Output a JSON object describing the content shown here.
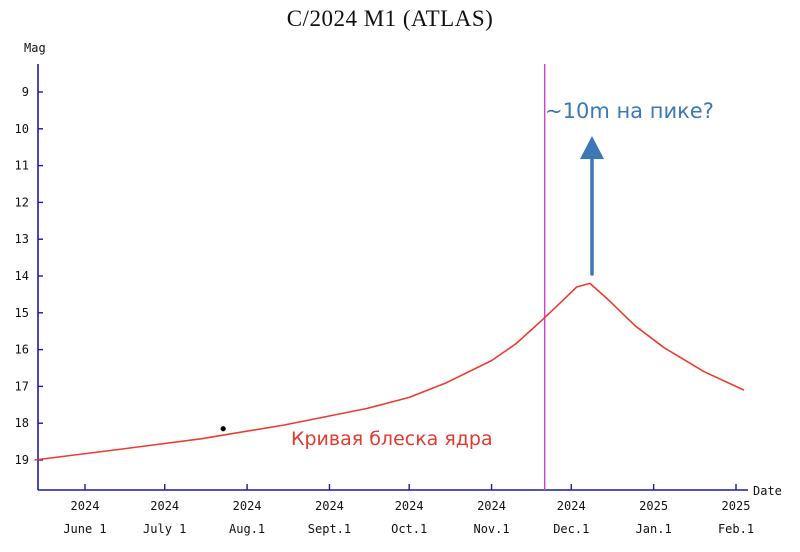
{
  "chart_data": {
    "type": "line",
    "title": "C/2024 M1 (ATLAS)",
    "ylabel": "Mag",
    "xlabel": "Date",
    "y_inverted": true,
    "ylim": [
      19.8,
      8.5
    ],
    "yticks": [
      9,
      10,
      11,
      12,
      13,
      14,
      15,
      16,
      17,
      18,
      19
    ],
    "xlim": [
      "2024-05-13",
      "2025-02-09"
    ],
    "xticks": [
      {
        "date": "2024-06-01",
        "year": "2024",
        "label": "June 1"
      },
      {
        "date": "2024-07-01",
        "year": "2024",
        "label": "July 1"
      },
      {
        "date": "2024-08-01",
        "year": "2024",
        "label": "Aug.1"
      },
      {
        "date": "2024-09-01",
        "year": "2024",
        "label": "Sept.1"
      },
      {
        "date": "2024-10-01",
        "year": "2024",
        "label": "Oct.1"
      },
      {
        "date": "2024-11-01",
        "year": "2024",
        "label": "Nov.1"
      },
      {
        "date": "2024-12-01",
        "year": "2024",
        "label": "Dec.1"
      },
      {
        "date": "2025-01-01",
        "year": "2025",
        "label": "Jan.1"
      },
      {
        "date": "2025-02-01",
        "year": "2025",
        "label": "Feb.1"
      }
    ],
    "series": [
      {
        "color": "#ee3b30",
        "points": [
          {
            "x": "2024-05-13",
            "y": 19.0
          },
          {
            "x": "2024-06-15",
            "y": 18.7
          },
          {
            "x": "2024-07-15",
            "y": 18.42
          },
          {
            "x": "2024-08-15",
            "y": 18.05
          },
          {
            "x": "2024-09-15",
            "y": 17.6
          },
          {
            "x": "2024-10-01",
            "y": 17.3
          },
          {
            "x": "2024-10-15",
            "y": 16.9
          },
          {
            "x": "2024-11-01",
            "y": 16.3
          },
          {
            "x": "2024-11-10",
            "y": 15.85
          },
          {
            "x": "2024-11-20",
            "y": 15.2
          },
          {
            "x": "2024-11-28",
            "y": 14.65
          },
          {
            "x": "2024-12-03",
            "y": 14.3
          },
          {
            "x": "2024-12-08",
            "y": 14.2
          },
          {
            "x": "2024-12-15",
            "y": 14.65
          },
          {
            "x": "2024-12-25",
            "y": 15.35
          },
          {
            "x": "2025-01-05",
            "y": 15.95
          },
          {
            "x": "2025-01-20",
            "y": 16.6
          },
          {
            "x": "2025-02-04",
            "y": 17.1
          }
        ]
      }
    ],
    "observations": [
      {
        "x": "2024-07-23",
        "y": 18.15
      }
    ],
    "vertical_marker": {
      "date": "2024-11-21",
      "color": "#cc44cc"
    },
    "annotations": {
      "peak_label": "~10m на пике?",
      "curve_label": "Кривая блеска ядра",
      "arrow_color": "#3b78b5"
    }
  }
}
